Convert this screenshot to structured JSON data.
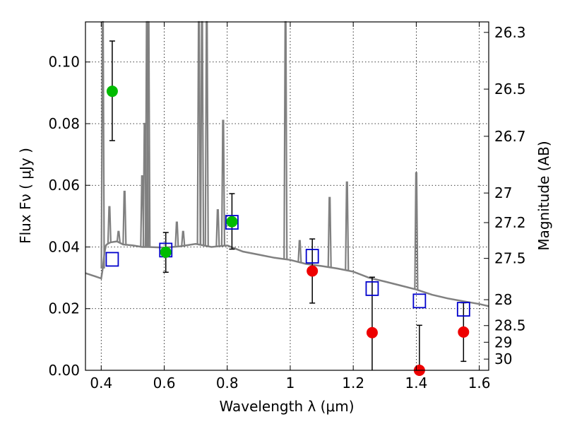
{
  "chart_data": {
    "type": "scatter",
    "xlabel": "Wavelength  λ (μm)",
    "ylabel": "Flux  Fν  ( μJy )",
    "y2label": "Magnitude (AB)",
    "xlim": [
      0.35,
      1.63
    ],
    "ylim": [
      0.0,
      0.113
    ],
    "grid": true,
    "x_ticks": [
      0.4,
      0.6,
      0.8,
      1.0,
      1.2,
      1.4,
      1.6
    ],
    "x_tick_labels": [
      "0.4",
      "0.6",
      "0.8",
      "1",
      "1.2",
      "1.4",
      "1.6"
    ],
    "y_ticks": [
      0.0,
      0.02,
      0.04,
      0.06,
      0.08,
      0.1
    ],
    "y_tick_labels": [
      "0.00",
      "0.02",
      "0.04",
      "0.06",
      "0.08",
      "0.10"
    ],
    "mag_ticks": [
      {
        "flux": 0.1096,
        "label": "26.3"
      },
      {
        "flux": 0.0912,
        "label": "26.5"
      },
      {
        "flux": 0.0759,
        "label": "26.7"
      },
      {
        "flux": 0.0575,
        "label": "27"
      },
      {
        "flux": 0.0479,
        "label": "27.2"
      },
      {
        "flux": 0.0363,
        "label": "27.5"
      },
      {
        "flux": 0.0229,
        "label": "28"
      },
      {
        "flux": 0.0145,
        "label": "28.5"
      },
      {
        "flux": 0.0091,
        "label": "29"
      },
      {
        "flux": 0.00363,
        "label": "30"
      }
    ],
    "colors": {
      "model": "#808080",
      "model_photometry": "#0000cc",
      "detected": "#00bb00",
      "upper": "#ee0000",
      "errorbar": "#000000"
    },
    "series": [
      {
        "kind": "model_spectrum",
        "x": [
          0.35,
          0.38,
          0.4,
          0.405,
          0.41,
          0.415,
          0.42,
          0.43,
          0.45,
          0.47,
          0.5,
          0.53,
          0.55,
          0.6,
          0.65,
          0.7,
          0.75,
          0.8,
          0.85,
          0.9,
          0.95,
          1.0,
          1.05,
          1.1,
          1.15,
          1.2,
          1.25,
          1.3,
          1.35,
          1.4,
          1.45,
          1.5,
          1.55,
          1.6,
          1.63
        ],
        "y": [
          0.0315,
          0.0305,
          0.0298,
          0.033,
          0.038,
          0.0405,
          0.041,
          0.0415,
          0.0418,
          0.0408,
          0.0405,
          0.04,
          0.04,
          0.0398,
          0.0402,
          0.041,
          0.04,
          0.0405,
          0.0385,
          0.0375,
          0.0365,
          0.0358,
          0.0345,
          0.0338,
          0.033,
          0.032,
          0.03,
          0.0288,
          0.0275,
          0.0262,
          0.0245,
          0.0233,
          0.0224,
          0.0215,
          0.0208
        ]
      },
      {
        "kind": "emission_lines",
        "lines": [
          {
            "x": 0.405,
            "peak": 0.113
          },
          {
            "x": 0.426,
            "peak": 0.053
          },
          {
            "x": 0.455,
            "peak": 0.045
          },
          {
            "x": 0.474,
            "peak": 0.058
          },
          {
            "x": 0.53,
            "peak": 0.063
          },
          {
            "x": 0.538,
            "peak": 0.08
          },
          {
            "x": 0.545,
            "peak": 0.113
          },
          {
            "x": 0.55,
            "peak": 0.113
          },
          {
            "x": 0.64,
            "peak": 0.048
          },
          {
            "x": 0.66,
            "peak": 0.045
          },
          {
            "x": 0.71,
            "peak": 0.113
          },
          {
            "x": 0.72,
            "peak": 0.113
          },
          {
            "x": 0.735,
            "peak": 0.113
          },
          {
            "x": 0.77,
            "peak": 0.052
          },
          {
            "x": 0.787,
            "peak": 0.081
          },
          {
            "x": 0.985,
            "peak": 0.113
          },
          {
            "x": 1.03,
            "peak": 0.042
          },
          {
            "x": 1.125,
            "peak": 0.056
          },
          {
            "x": 1.18,
            "peak": 0.061
          },
          {
            "x": 1.4,
            "peak": 0.064
          }
        ]
      },
      {
        "kind": "model_photometry",
        "x": [
          0.435,
          0.605,
          0.815,
          1.07,
          1.26,
          1.41,
          1.55
        ],
        "y": [
          0.036,
          0.039,
          0.048,
          0.037,
          0.0265,
          0.0225,
          0.0198
        ]
      },
      {
        "kind": "detected",
        "x": [
          0.435,
          0.605,
          0.815
        ],
        "y": [
          0.0905,
          0.0383,
          0.0482
        ],
        "err_low": [
          0.0745,
          0.0318,
          0.0393
        ],
        "err_high": [
          0.1068,
          0.0447,
          0.0573
        ]
      },
      {
        "kind": "upper",
        "x": [
          1.07,
          1.26,
          1.41,
          1.55
        ],
        "y": [
          0.0322,
          0.0122,
          0.0,
          0.0124
        ],
        "err_low": [
          0.0218,
          0.0,
          0.0,
          0.0029
        ],
        "err_high": [
          0.0426,
          0.0302,
          0.0146,
          0.0219
        ]
      }
    ]
  }
}
